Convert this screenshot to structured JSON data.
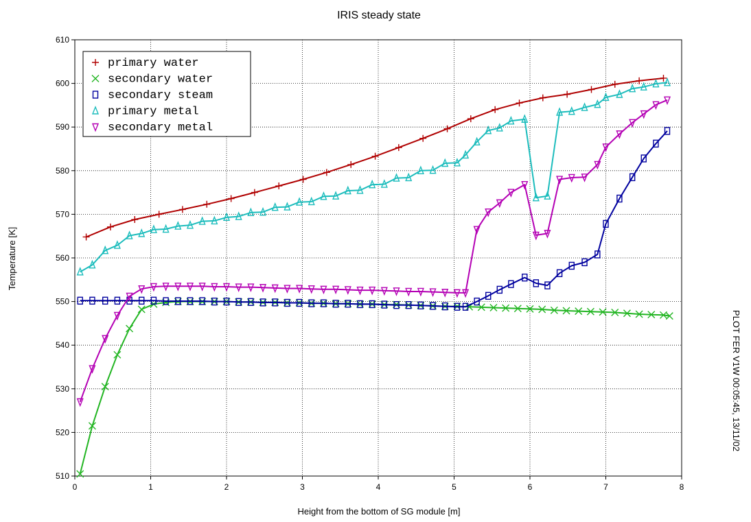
{
  "chart_data": {
    "type": "line",
    "title": "IRIS steady state",
    "xlabel": "Height from the bottom of SG module [m]",
    "ylabel": "Temperature [K]",
    "side_note": "PLOT FER V1W 00:05:45, 13/11/02",
    "xlim": [
      0,
      8
    ],
    "ylim": [
      510,
      610
    ],
    "xticks": [
      0,
      1,
      2,
      3,
      4,
      5,
      6,
      7,
      8
    ],
    "yticks": [
      510,
      520,
      530,
      540,
      550,
      560,
      570,
      580,
      590,
      600,
      610
    ],
    "grid": true,
    "legend_position": "top-left",
    "series": [
      {
        "name": "primary water",
        "color": "#b00000",
        "marker": "plus",
        "x": [
          0.15,
          0.47,
          0.79,
          1.11,
          1.42,
          1.74,
          2.06,
          2.37,
          2.69,
          3.01,
          3.32,
          3.64,
          3.96,
          4.27,
          4.59,
          4.91,
          5.22,
          5.54,
          5.86,
          6.17,
          6.49,
          6.81,
          7.12,
          7.44,
          7.76
        ],
        "y": [
          564.8,
          567.1,
          568.8,
          570.0,
          571.1,
          572.3,
          573.6,
          575.0,
          576.5,
          578.0,
          579.6,
          581.4,
          583.3,
          585.3,
          587.4,
          589.6,
          591.9,
          594.0,
          595.5,
          596.7,
          597.5,
          598.6,
          599.8,
          600.6,
          601.2
        ]
      },
      {
        "name": "secondary water",
        "color": "#22b522",
        "marker": "x",
        "x": [
          0.07,
          0.23,
          0.4,
          0.56,
          0.72,
          0.88,
          1.04,
          1.2,
          1.36,
          1.52,
          1.68,
          1.84,
          2.0,
          2.16,
          2.32,
          2.48,
          2.64,
          2.8,
          2.96,
          3.12,
          3.28,
          3.44,
          3.6,
          3.76,
          3.92,
          4.08,
          4.24,
          4.4,
          4.56,
          4.72,
          4.88,
          5.04,
          5.2,
          5.36,
          5.52,
          5.68,
          5.84,
          6.0,
          6.16,
          6.32,
          6.48,
          6.64,
          6.8,
          6.96,
          7.12,
          7.28,
          7.44,
          7.6,
          7.76,
          7.84
        ],
        "y": [
          510.5,
          521.5,
          530.5,
          537.8,
          543.8,
          548.2,
          549.4,
          549.8,
          550.0,
          550.0,
          550.0,
          550.0,
          550.0,
          549.9,
          549.9,
          549.8,
          549.8,
          549.7,
          549.7,
          549.6,
          549.6,
          549.5,
          549.5,
          549.4,
          549.4,
          549.3,
          549.3,
          549.2,
          549.1,
          549.0,
          548.9,
          548.9,
          548.8,
          548.7,
          548.6,
          548.5,
          548.4,
          548.3,
          548.2,
          548.0,
          547.9,
          547.8,
          547.7,
          547.6,
          547.5,
          547.3,
          547.1,
          547.0,
          546.9,
          546.7
        ]
      },
      {
        "name": "secondary steam",
        "color": "#00009e",
        "marker": "square",
        "x": [
          0.07,
          0.23,
          0.4,
          0.56,
          0.72,
          0.88,
          1.04,
          1.2,
          1.36,
          1.52,
          1.68,
          1.84,
          2.0,
          2.16,
          2.32,
          2.48,
          2.64,
          2.8,
          2.96,
          3.12,
          3.28,
          3.44,
          3.6,
          3.76,
          3.92,
          4.08,
          4.24,
          4.4,
          4.56,
          4.72,
          4.88,
          5.04,
          5.15,
          5.3,
          5.45,
          5.6,
          5.75,
          5.93,
          6.08,
          6.23,
          6.39,
          6.55,
          6.72,
          6.89,
          7.0,
          7.18,
          7.35,
          7.5,
          7.66,
          7.81
        ],
        "y": [
          550.2,
          550.2,
          550.2,
          550.2,
          550.2,
          550.2,
          550.2,
          550.1,
          550.1,
          550.1,
          550.1,
          550.0,
          550.0,
          549.9,
          549.9,
          549.8,
          549.8,
          549.7,
          549.7,
          549.6,
          549.6,
          549.5,
          549.5,
          549.4,
          549.4,
          549.3,
          549.2,
          549.2,
          549.1,
          549.0,
          548.9,
          548.8,
          548.8,
          550.0,
          551.3,
          552.7,
          554.0,
          555.5,
          554.2,
          553.7,
          556.5,
          558.2,
          559.0,
          560.8,
          567.8,
          573.6,
          578.5,
          582.8,
          586.2,
          589.1
        ]
      },
      {
        "name": "primary metal",
        "color": "#1bbcbc",
        "marker": "triangle-up",
        "x": [
          0.07,
          0.23,
          0.4,
          0.56,
          0.72,
          0.88,
          1.04,
          1.2,
          1.36,
          1.52,
          1.68,
          1.84,
          2.0,
          2.16,
          2.32,
          2.48,
          2.64,
          2.8,
          2.96,
          3.12,
          3.28,
          3.44,
          3.6,
          3.76,
          3.92,
          4.08,
          4.24,
          4.4,
          4.56,
          4.72,
          4.88,
          5.04,
          5.15,
          5.3,
          5.45,
          5.6,
          5.75,
          5.93,
          6.08,
          6.23,
          6.39,
          6.55,
          6.72,
          6.89,
          7.0,
          7.18,
          7.35,
          7.5,
          7.66,
          7.81
        ],
        "y": [
          556.8,
          558.4,
          561.7,
          562.9,
          565.1,
          565.6,
          566.5,
          566.6,
          567.3,
          567.5,
          568.4,
          568.5,
          569.3,
          569.5,
          570.4,
          570.5,
          571.6,
          571.7,
          572.8,
          572.9,
          574.1,
          574.2,
          575.4,
          575.5,
          576.8,
          576.9,
          578.3,
          578.4,
          580.0,
          580.1,
          581.7,
          581.8,
          583.6,
          586.6,
          589.2,
          589.8,
          591.4,
          591.8,
          573.8,
          574.2,
          593.4,
          593.6,
          594.5,
          595.2,
          596.8,
          597.5,
          598.8,
          599.2,
          599.9,
          600.2
        ]
      },
      {
        "name": "secondary metal",
        "color": "#b400b4",
        "marker": "triangle-down",
        "x": [
          0.07,
          0.23,
          0.4,
          0.56,
          0.72,
          0.88,
          1.04,
          1.2,
          1.36,
          1.52,
          1.68,
          1.84,
          2.0,
          2.16,
          2.32,
          2.48,
          2.64,
          2.8,
          2.96,
          3.12,
          3.28,
          3.44,
          3.6,
          3.76,
          3.92,
          4.08,
          4.24,
          4.4,
          4.56,
          4.72,
          4.88,
          5.04,
          5.15,
          5.3,
          5.45,
          5.6,
          5.75,
          5.93,
          6.08,
          6.23,
          6.39,
          6.55,
          6.72,
          6.89,
          7.0,
          7.18,
          7.35,
          7.5,
          7.66,
          7.81
        ],
        "y": [
          527.0,
          534.6,
          541.5,
          546.8,
          551.2,
          552.9,
          553.4,
          553.5,
          553.5,
          553.5,
          553.5,
          553.4,
          553.4,
          553.3,
          553.3,
          553.2,
          553.1,
          553.0,
          553.0,
          552.9,
          552.8,
          552.8,
          552.7,
          552.6,
          552.6,
          552.5,
          552.4,
          552.3,
          552.3,
          552.2,
          552.1,
          552.0,
          552.0,
          566.5,
          570.5,
          572.6,
          575.0,
          576.8,
          565.2,
          565.6,
          578.0,
          578.4,
          578.5,
          581.4,
          585.4,
          588.4,
          591.0,
          593.0,
          595.1,
          596.2
        ]
      }
    ]
  }
}
